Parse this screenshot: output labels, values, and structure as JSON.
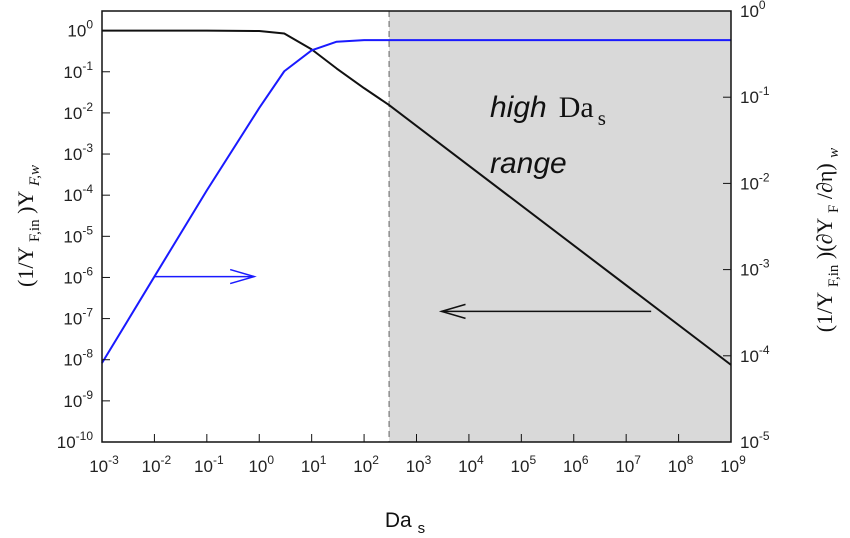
{
  "chart_data": {
    "type": "line",
    "x_axis": {
      "label": "Da",
      "label_sub": "s",
      "scale": "log",
      "range": [
        0.001,
        1000000000
      ],
      "ticks": [
        {
          "base": "10",
          "exp": "-3"
        },
        {
          "base": "10",
          "exp": "-2"
        },
        {
          "base": "10",
          "exp": "-1"
        },
        {
          "base": "10",
          "exp": "0"
        },
        {
          "base": "10",
          "exp": "1"
        },
        {
          "base": "10",
          "exp": "2"
        },
        {
          "base": "10",
          "exp": "3"
        },
        {
          "base": "10",
          "exp": "4"
        },
        {
          "base": "10",
          "exp": "5"
        },
        {
          "base": "10",
          "exp": "6"
        },
        {
          "base": "10",
          "exp": "7"
        },
        {
          "base": "10",
          "exp": "8"
        },
        {
          "base": "10",
          "exp": "9"
        }
      ]
    },
    "y_left": {
      "label_parts": [
        "(1/Y",
        "F,in",
        ")Y",
        "F,w"
      ],
      "scale": "log",
      "range": [
        1e-10,
        3
      ],
      "ticks": [
        {
          "value": 1,
          "base": "10",
          "exp": "0"
        },
        {
          "value": 0.1,
          "base": "10",
          "exp": "-1"
        },
        {
          "value": 0.01,
          "base": "10",
          "exp": "-2"
        },
        {
          "value": 0.001,
          "base": "10",
          "exp": "-3"
        },
        {
          "value": 0.0001,
          "base": "10",
          "exp": "-4"
        },
        {
          "value": 1e-05,
          "base": "10",
          "exp": "-5"
        },
        {
          "value": 1e-06,
          "base": "10",
          "exp": "-6"
        },
        {
          "value": 1e-07,
          "base": "10",
          "exp": "-7"
        },
        {
          "value": 1e-08,
          "base": "10",
          "exp": "-8"
        },
        {
          "value": 1e-09,
          "base": "10",
          "exp": "-9"
        },
        {
          "value": 1e-10,
          "base": "10",
          "exp": "-10"
        }
      ]
    },
    "y_right": {
      "label_parts": [
        "(1/Y",
        "F,in",
        ")(∂Y",
        "F",
        "/∂η)",
        "w"
      ],
      "scale": "log",
      "range": [
        1e-05,
        1
      ],
      "ticks": [
        {
          "value": 1,
          "base": "10",
          "exp": "0"
        },
        {
          "value": 0.1,
          "base": "10",
          "exp": "-1"
        },
        {
          "value": 0.01,
          "base": "10",
          "exp": "-2"
        },
        {
          "value": 0.001,
          "base": "10",
          "exp": "-3"
        },
        {
          "value": 0.0001,
          "base": "10",
          "exp": "-4"
        },
        {
          "value": 1e-05,
          "base": "10",
          "exp": "-5"
        }
      ]
    },
    "series": [
      {
        "axis": "left",
        "color": "#111111",
        "points": [
          [
            0.001,
            1
          ],
          [
            0.1,
            1
          ],
          [
            1,
            0.98
          ],
          [
            3,
            0.85
          ],
          [
            10,
            0.35
          ],
          [
            30,
            0.12
          ],
          [
            100,
            0.04
          ],
          [
            300,
            0.0155
          ],
          [
            1000000000,
            7.5e-09
          ]
        ]
      },
      {
        "axis": "right",
        "color": "#1a1aff",
        "points": [
          [
            0.001,
            8.25e-05
          ],
          [
            0.01,
            0.00083
          ],
          [
            0.1,
            0.0083
          ],
          [
            1,
            0.075
          ],
          [
            3,
            0.2
          ],
          [
            10,
            0.35
          ],
          [
            30,
            0.44
          ],
          [
            100,
            0.46
          ],
          [
            300,
            0.46
          ],
          [
            1000000000,
            0.46
          ]
        ]
      }
    ],
    "shaded_region": {
      "from": 300,
      "to": 1000000000,
      "color": "#d9d9d9"
    },
    "vline": {
      "x": 300,
      "style": "dashed"
    },
    "annotations": {
      "text_italic": "high",
      "text_symbol": "Da",
      "text_symbol_sub": "s",
      "text_line2": "range",
      "arrow_right": {
        "from": 0.01,
        "to": 0.8,
        "y_right": 0.00083,
        "color": "#1a1aff"
      },
      "arrow_left": {
        "from": 30000000,
        "to": 3000,
        "y_left": 1.5e-07,
        "color": "#111111"
      }
    }
  }
}
